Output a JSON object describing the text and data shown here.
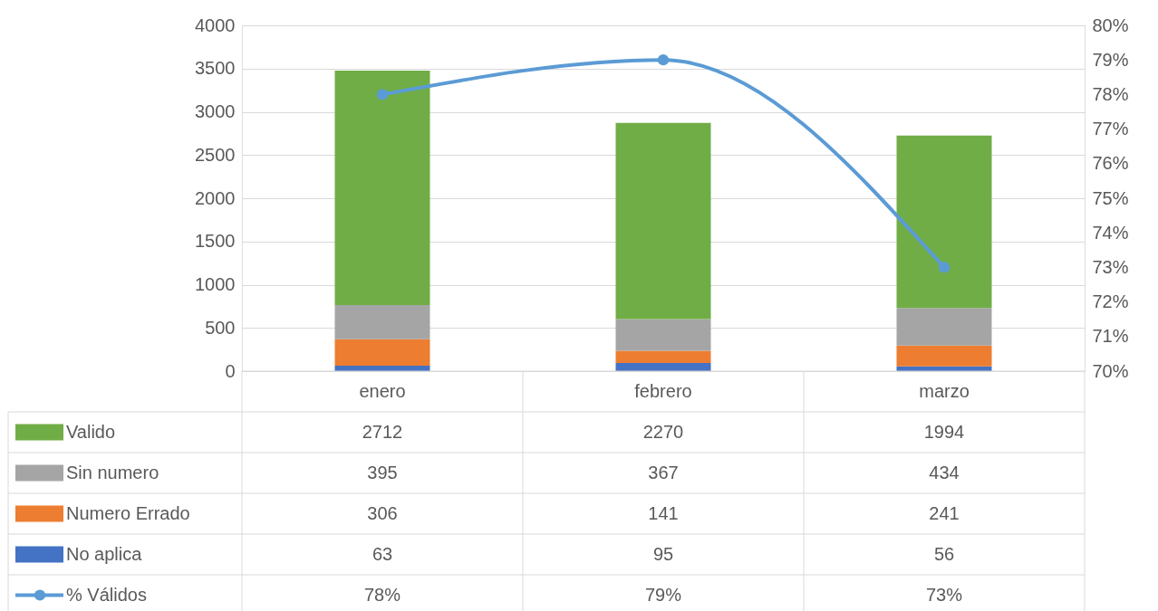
{
  "chart_data": {
    "type": "bar",
    "stacked": true,
    "categories": [
      "enero",
      "febrero",
      "marzo"
    ],
    "series": [
      {
        "name": "No aplica",
        "color": "#4472c4",
        "values": [
          63,
          95,
          56
        ]
      },
      {
        "name": "Numero Errado",
        "color": "#ed7d31",
        "values": [
          306,
          141,
          241
        ]
      },
      {
        "name": "Sin numero",
        "color": "#a5a5a5",
        "values": [
          395,
          367,
          434
        ]
      },
      {
        "name": "Valido",
        "color": "#70ad47",
        "values": [
          2712,
          2270,
          1994
        ]
      },
      {
        "name": "% Válidos",
        "type": "line",
        "axis": "y2",
        "marker": "circle",
        "color": "#5b9bd5",
        "values": [
          78,
          79,
          73
        ],
        "value_labels": [
          "78%",
          "79%",
          "73%"
        ]
      }
    ],
    "ylim": [
      0,
      4000
    ],
    "yticks": [
      0,
      500,
      1000,
      1500,
      2000,
      2500,
      3000,
      3500,
      4000
    ],
    "y2lim": [
      70,
      80
    ],
    "y2ticks": [
      {
        "value": 70,
        "label": "70%"
      },
      {
        "value": 71,
        "label": "71%"
      },
      {
        "value": 72,
        "label": "72%"
      },
      {
        "value": 73,
        "label": "73%"
      },
      {
        "value": 74,
        "label": "74%"
      },
      {
        "value": 75,
        "label": "75%"
      },
      {
        "value": 76,
        "label": "76%"
      },
      {
        "value": 77,
        "label": "77%"
      },
      {
        "value": 78,
        "label": "78%"
      },
      {
        "value": 79,
        "label": "79%"
      },
      {
        "value": 80,
        "label": "80%"
      }
    ],
    "data_labels": true,
    "grid": "y",
    "legend": "bottom left"
  }
}
